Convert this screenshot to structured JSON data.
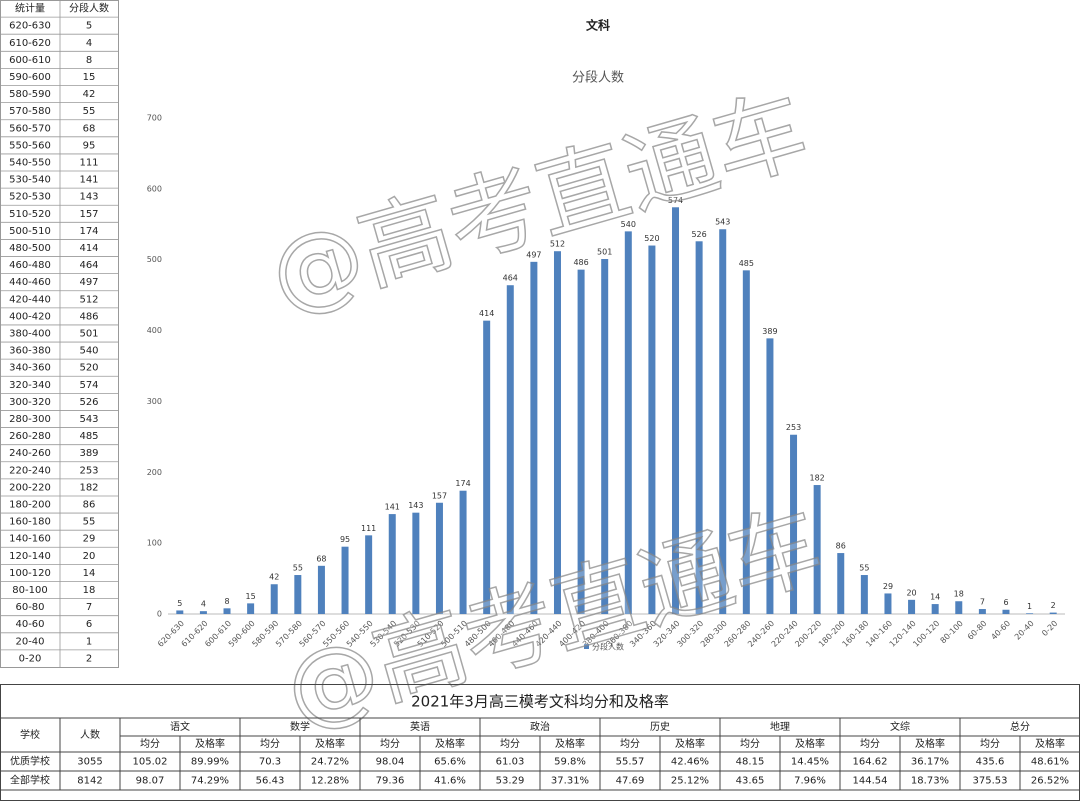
{
  "chart_data": {
    "type": "bar",
    "sheet_title": "文科",
    "title": "分段人数",
    "categories": [
      "620-630",
      "610-620",
      "600-610",
      "590-600",
      "580-590",
      "570-580",
      "560-570",
      "550-560",
      "540-550",
      "530-540",
      "520-530",
      "510-520",
      "500-510",
      "480-500",
      "460-480",
      "440-460",
      "420-440",
      "400-420",
      "380-400",
      "360-380",
      "340-360",
      "320-340",
      "300-320",
      "280-300",
      "260-280",
      "240-260",
      "220-240",
      "200-220",
      "180-200",
      "160-180",
      "140-160",
      "120-140",
      "100-120",
      "80-100",
      "60-80",
      "40-60",
      "20-40",
      "0-20"
    ],
    "series": [
      {
        "name": "分段人数",
        "color": "#4f81bd",
        "values": [
          5,
          4,
          8,
          15,
          42,
          55,
          68,
          95,
          111,
          141,
          143,
          157,
          174,
          414,
          464,
          497,
          512,
          486,
          501,
          540,
          520,
          574,
          526,
          543,
          485,
          389,
          253,
          182,
          86,
          55,
          29,
          20,
          14,
          18,
          7,
          6,
          1,
          2
        ]
      }
    ],
    "ylim": [
      0,
      700
    ],
    "yticks": [
      0,
      100,
      200,
      300,
      400,
      500,
      600,
      700
    ],
    "grid": false,
    "legend": "bottom"
  },
  "left_table": {
    "headers": [
      "统计量",
      "分段人数"
    ]
  },
  "watermark": "@高考直通车",
  "score_table": {
    "title": "2021年3月高三模考文科均分和及格率",
    "headers": [
      "学校",
      "人数"
    ],
    "subjects": [
      "语文",
      "数学",
      "英语",
      "政治",
      "历史",
      "地理",
      "文综",
      "总分"
    ],
    "subheaders": [
      "均分",
      "及格率"
    ],
    "rows": [
      [
        "优质学校",
        "3055",
        "105.02",
        "89.99%",
        "70.3",
        "24.72%",
        "98.04",
        "65.6%",
        "61.03",
        "59.8%",
        "55.57",
        "42.46%",
        "48.15",
        "14.45%",
        "164.62",
        "36.17%",
        "435.6",
        "48.61%"
      ],
      [
        "全部学校",
        "8142",
        "98.07",
        "74.29%",
        "56.43",
        "12.28%",
        "79.36",
        "41.6%",
        "53.29",
        "37.31%",
        "47.69",
        "25.12%",
        "43.65",
        "7.96%",
        "144.54",
        "18.73%",
        "375.53",
        "26.52%"
      ]
    ]
  }
}
